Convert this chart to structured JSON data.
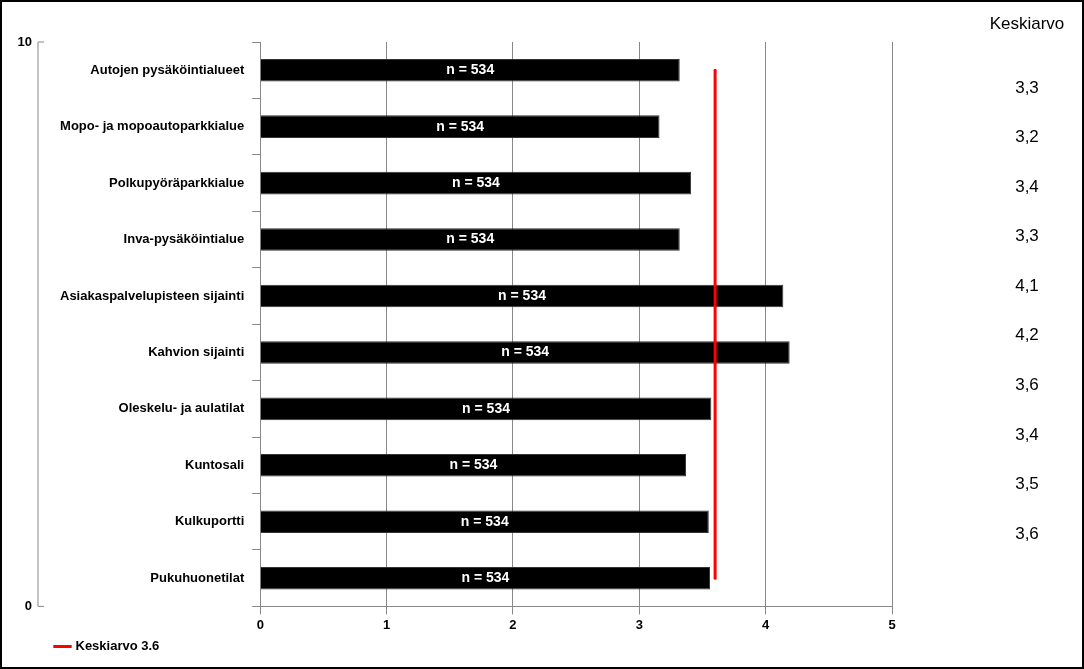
{
  "chart_data": {
    "type": "bar",
    "orientation": "horizontal",
    "categories": [
      "Autojen pysäköintialueet",
      "Mopo- ja mopoautoparkkialue",
      "Polkupyöräparkkialue",
      "Inva-pysäköintialue",
      "Asiakaspalvelupisteen sijainti",
      "Kahvion sijainti",
      "Oleskelu- ja aulatilat",
      "Kuntosali",
      "Kulkuportti",
      "Pukuhuonetilat"
    ],
    "series": [
      {
        "color": "#000000",
        "values": [
          3.32,
          3.16,
          3.41,
          3.32,
          4.14,
          4.19,
          3.57,
          3.37,
          3.55,
          3.56
        ]
      }
    ],
    "ref_lines": [
      {
        "axis": "x",
        "value": 3.6,
        "label": "Keskiarvo 3.6",
        "color": "#ff0000"
      }
    ],
    "xlim": [
      0,
      5
    ],
    "xticks": [
      0,
      1,
      2,
      3,
      4,
      5
    ],
    "grid": "x",
    "legend": "bottom",
    "annotations": [
      "Keskiarvo",
      "3,3",
      "3,2",
      "3,4",
      "3,3",
      "4,1",
      "4,2",
      "3,6",
      "3,4",
      "3,5",
      "3,6",
      "n = 534",
      "n = 534",
      "n = 534",
      "n = 534",
      "n = 534",
      "n = 534",
      "n = 534",
      "n = 534",
      "n = 534",
      "n = 534",
      "10",
      "0"
    ]
  }
}
